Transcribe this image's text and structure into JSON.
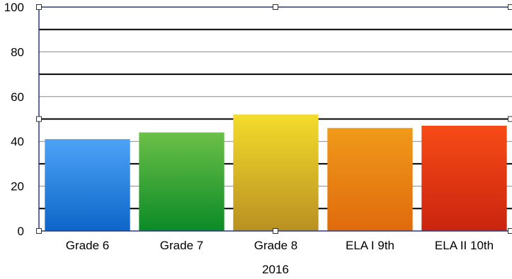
{
  "chart_data": {
    "type": "bar",
    "title": "",
    "xlabel": "2016",
    "ylabel": "",
    "categories": [
      "Grade 6",
      "Grade 7",
      "Grade 8",
      "ELA I 9th",
      "ELA II 10th"
    ],
    "series": [
      {
        "values": [
          41,
          44,
          52,
          46,
          47
        ]
      }
    ],
    "ylim": [
      0,
      100
    ],
    "yticks": [
      0,
      20,
      40,
      60,
      80,
      100
    ],
    "grid": true,
    "legend": "none",
    "colors": {
      "bars_top": [
        "#4da3f5",
        "#6cc048",
        "#f4dc2c",
        "#f09a1a",
        "#f74b17"
      ],
      "bars_bottom": [
        "#0d66c9",
        "#0a8a26",
        "#b99022",
        "#e06a0c",
        "#c9240f"
      ],
      "axis": "#2a3a7a",
      "grid_thin": "#888888",
      "grid_thick": "#000000"
    }
  }
}
